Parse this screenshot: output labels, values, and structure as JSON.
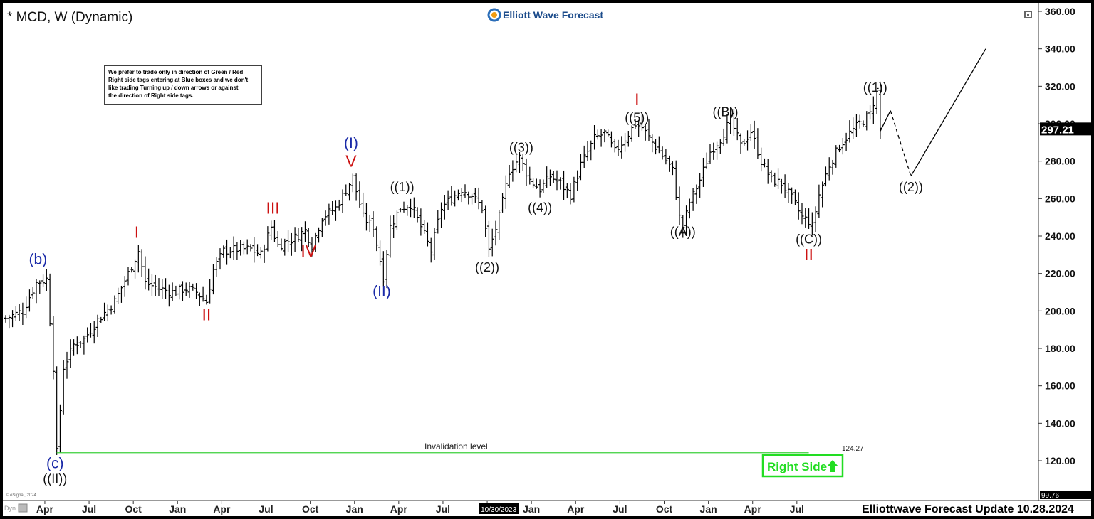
{
  "symbol_title": "* MCD, W (Dynamic)",
  "brand": {
    "name": "Elliott Wave Forecast"
  },
  "notice_lines": [
    "We prefer to trade only in direction of Green / Red",
    "Right side tags entering at Blue boxes and we don't",
    "like trading Turning up / down arrows or against",
    "the direction of Right side tags."
  ],
  "update_footer": "Elliottwave Forecast Update 10.28.2024",
  "copyright": "© eSignal, 2024",
  "toolbar_label": "Dyn",
  "right_side_tag": {
    "label": "Right Side",
    "color": "#22dd22"
  },
  "colors": {
    "blue_label": "#1a2aa8",
    "red_label": "#cc1111",
    "black_label": "#111111",
    "invalidation": "#3bd13b",
    "price": "#000000"
  },
  "chart_data": {
    "type": "candlestick",
    "title": "* MCD, W (Dynamic)",
    "ylim": [
      99.76,
      360
    ],
    "y_ticks": [
      "360.00",
      "340.00",
      "320.00",
      "300.00",
      "280.00",
      "260.00",
      "240.00",
      "220.00",
      "200.00",
      "180.00",
      "160.00",
      "140.00",
      "120.00"
    ],
    "y_min_label": "99.76",
    "last_price": {
      "value": 297.21,
      "label": "297.21"
    },
    "x_ticks": [
      "Apr",
      "Jul",
      "Oct",
      "Jan",
      "Apr",
      "Jul",
      "Oct",
      "Jan",
      "Apr",
      "Jul",
      "Oct",
      "Jan",
      "Apr",
      "Jul",
      "Oct",
      "Jan",
      "Apr",
      "Jul"
    ],
    "x_highlight": {
      "label": "10/30/2023",
      "after_tick": "Jul"
    },
    "x_range_weeks": [
      0,
      250
    ],
    "x_tick_weeks": [
      11.5,
      24.5,
      37.5,
      50.5,
      63.5,
      76.5,
      89.5,
      102.5,
      115.5,
      128.5,
      141.5,
      154.5,
      167.5,
      180.5,
      193.5,
      206.5,
      219.5,
      232.5
    ],
    "price_path": [
      [
        0,
        196
      ],
      [
        5,
        200
      ],
      [
        9,
        215
      ],
      [
        12,
        217
      ],
      [
        13,
        195
      ],
      [
        14,
        170
      ],
      [
        15,
        124.27
      ],
      [
        17,
        170
      ],
      [
        20,
        182
      ],
      [
        23,
        185
      ],
      [
        27,
        195
      ],
      [
        32,
        205
      ],
      [
        36,
        220
      ],
      [
        38,
        228
      ],
      [
        39,
        232
      ],
      [
        41,
        215
      ],
      [
        45,
        212
      ],
      [
        49,
        210
      ],
      [
        53,
        212
      ],
      [
        56,
        210
      ],
      [
        59,
        205
      ],
      [
        61,
        222
      ],
      [
        64,
        232
      ],
      [
        68,
        233
      ],
      [
        72,
        233
      ],
      [
        75,
        230
      ],
      [
        78,
        245
      ],
      [
        80,
        235
      ],
      [
        84,
        238
      ],
      [
        88,
        243
      ],
      [
        90,
        235
      ],
      [
        93,
        250
      ],
      [
        97,
        255
      ],
      [
        101,
        268
      ],
      [
        102,
        271
      ],
      [
        105,
        250
      ],
      [
        108,
        245
      ],
      [
        111,
        218
      ],
      [
        113,
        245
      ],
      [
        116,
        255
      ],
      [
        119,
        257
      ],
      [
        122,
        245
      ],
      [
        125,
        232
      ],
      [
        128,
        255
      ],
      [
        131,
        260
      ],
      [
        134,
        265
      ],
      [
        137,
        262
      ],
      [
        140,
        255
      ],
      [
        142,
        232
      ],
      [
        145,
        250
      ],
      [
        148,
        275
      ],
      [
        151,
        282
      ],
      [
        154,
        270
      ],
      [
        157,
        265
      ],
      [
        160,
        272
      ],
      [
        163,
        268
      ],
      [
        166,
        262
      ],
      [
        169,
        278
      ],
      [
        173,
        292
      ],
      [
        176,
        295
      ],
      [
        179,
        285
      ],
      [
        182,
        292
      ],
      [
        185,
        300
      ],
      [
        187,
        298
      ],
      [
        190,
        290
      ],
      [
        193,
        283
      ],
      [
        196,
        275
      ],
      [
        198,
        250
      ],
      [
        199,
        245
      ],
      [
        201,
        258
      ],
      [
        204,
        270
      ],
      [
        207,
        285
      ],
      [
        210,
        292
      ],
      [
        213,
        302
      ],
      [
        216,
        288
      ],
      [
        219,
        296
      ],
      [
        222,
        280
      ],
      [
        225,
        270
      ],
      [
        228,
        268
      ],
      [
        231,
        260
      ],
      [
        234,
        250
      ],
      [
        236,
        248
      ],
      [
        237,
        245
      ],
      [
        239,
        262
      ],
      [
        242,
        278
      ],
      [
        245,
        288
      ],
      [
        248,
        295
      ],
      [
        251,
        300
      ],
      [
        254,
        305
      ],
      [
        256,
        318
      ],
      [
        257,
        297.21
      ]
    ],
    "projection": [
      {
        "from": [
          257,
          296
        ],
        "to": [
          260,
          307
        ],
        "style": "solid"
      },
      {
        "from": [
          260,
          307
        ],
        "to": [
          266,
          272
        ],
        "style": "dashed"
      },
      {
        "from": [
          266,
          272
        ],
        "to": [
          288,
          340
        ],
        "style": "solid"
      }
    ],
    "invalidation": {
      "label": "Invalidation level",
      "value_label": "124.27",
      "value": 124.27,
      "from_week": 15,
      "to_week": 236
    },
    "wave_labels": [
      {
        "text": "(b)",
        "week": 9.5,
        "price": 225,
        "color": "blue"
      },
      {
        "text": "(c)",
        "week": 14.5,
        "price": 116,
        "color": "blue"
      },
      {
        "text": "((II))",
        "week": 14.5,
        "price": 108,
        "color": "black"
      },
      {
        "text": "I",
        "week": 38.5,
        "price": 239,
        "color": "red"
      },
      {
        "text": "II",
        "week": 59,
        "price": 195,
        "color": "red"
      },
      {
        "text": "III",
        "week": 78.5,
        "price": 252,
        "color": "red"
      },
      {
        "text": "IV",
        "week": 89,
        "price": 229,
        "color": "red"
      },
      {
        "text": "V",
        "week": 101.5,
        "price": 277,
        "color": "red"
      },
      {
        "text": "(I)",
        "week": 101.5,
        "price": 287,
        "color": "blue"
      },
      {
        "text": "(II)",
        "week": 110.5,
        "price": 208,
        "color": "blue"
      },
      {
        "text": "((1))",
        "week": 116.5,
        "price": 264,
        "color": "black"
      },
      {
        "text": "((2))",
        "week": 141.5,
        "price": 221,
        "color": "black"
      },
      {
        "text": "((3))",
        "week": 151.5,
        "price": 285,
        "color": "black"
      },
      {
        "text": "((4))",
        "week": 157,
        "price": 253,
        "color": "black"
      },
      {
        "text": "((5))",
        "week": 185.5,
        "price": 301,
        "color": "black"
      },
      {
        "text": "I",
        "week": 185.5,
        "price": 310,
        "color": "red"
      },
      {
        "text": "((A))",
        "week": 199,
        "price": 240,
        "color": "black"
      },
      {
        "text": "((B))",
        "week": 211.5,
        "price": 304,
        "color": "black"
      },
      {
        "text": "((C))",
        "week": 236,
        "price": 236,
        "color": "black"
      },
      {
        "text": "II",
        "week": 236,
        "price": 227,
        "color": "red"
      },
      {
        "text": "((1))",
        "week": 255.5,
        "price": 317,
        "color": "black"
      },
      {
        "text": "((2))",
        "week": 266,
        "price": 264,
        "color": "black"
      }
    ]
  }
}
